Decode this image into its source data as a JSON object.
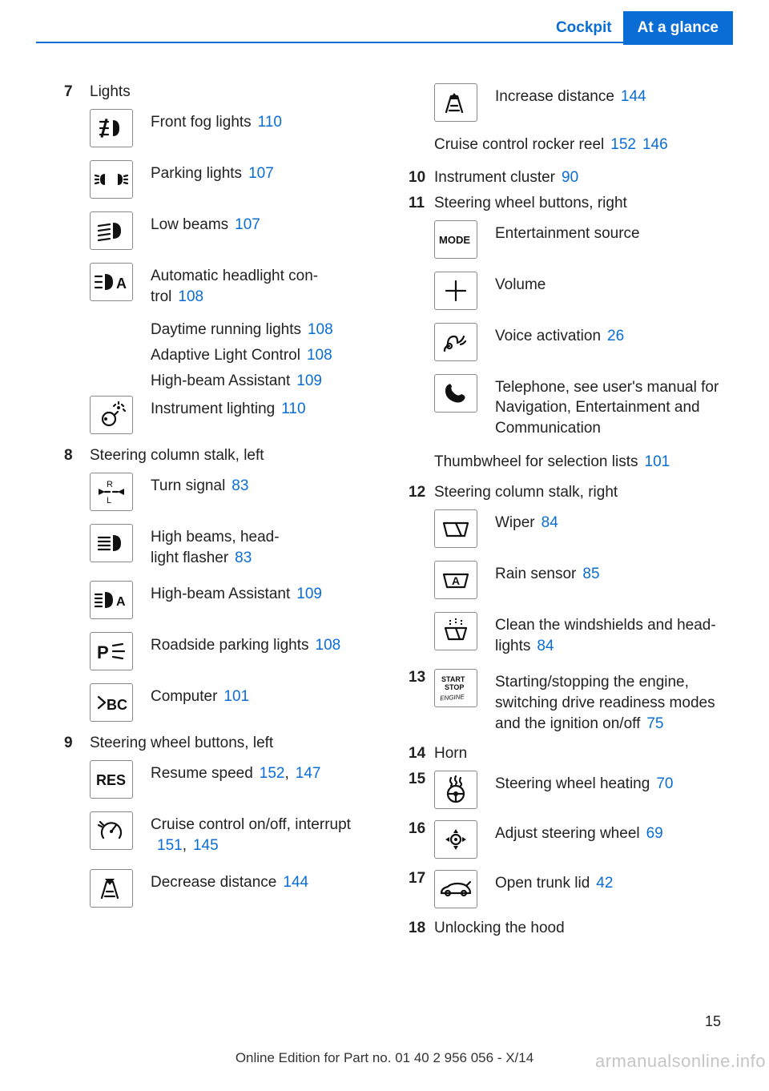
{
  "header": {
    "tab1": "Cockpit",
    "tab2": "At a glance"
  },
  "link_color": "#0a6dd6",
  "left_column": [
    {
      "num": "7",
      "title": "Lights",
      "items": [
        {
          "icon": "front-fog",
          "text": "Front fog lights",
          "refs": [
            "110"
          ]
        },
        {
          "icon": "parking-lights",
          "text": "Parking lights",
          "refs": [
            "107"
          ]
        },
        {
          "icon": "low-beams",
          "text": "Low beams",
          "refs": [
            "107"
          ]
        },
        {
          "icon": "auto-headlight",
          "text": "Automatic headlight con‐\ntrol",
          "refs": [
            "108"
          ]
        },
        {
          "icon": "",
          "text": "Daytime running lights",
          "refs": [
            "108"
          ],
          "noicon": true
        },
        {
          "icon": "",
          "text": "Adaptive Light Control",
          "refs": [
            "108"
          ],
          "noicon": true
        },
        {
          "icon": "",
          "text": "High-beam Assistant",
          "refs": [
            "109"
          ],
          "noicon": true
        },
        {
          "icon": "instrument-lighting",
          "text": "Instrument lighting",
          "refs": [
            "110"
          ]
        }
      ]
    },
    {
      "num": "8",
      "title": "Steering column stalk, left",
      "items": [
        {
          "icon": "turn-signal",
          "text": "Turn signal",
          "refs": [
            "83"
          ]
        },
        {
          "icon": "high-beams",
          "text": "High beams, head‐\nlight flasher",
          "refs": [
            "83"
          ]
        },
        {
          "icon": "hba",
          "text": "High-beam Assistant",
          "refs": [
            "109"
          ]
        },
        {
          "icon": "roadside-parking",
          "text": "Roadside parking lights",
          "refs": [
            "108"
          ]
        },
        {
          "icon": "computer",
          "text": "Computer",
          "refs": [
            "101"
          ]
        }
      ]
    },
    {
      "num": "9",
      "title": "Steering wheel buttons, left",
      "items": [
        {
          "icon": "res",
          "text": "Resume speed",
          "refs": [
            "152",
            "147"
          ],
          "comma": true
        },
        {
          "icon": "cruise-onoff",
          "text": "Cruise control on/off, interrupt",
          "refs": [
            "151",
            "145"
          ],
          "comma": true,
          "refs_newline": true
        },
        {
          "icon": "decrease-distance",
          "text": "Decrease distance",
          "refs": [
            "144"
          ]
        }
      ]
    }
  ],
  "right_column_pre": [
    {
      "icon": "increase-distance",
      "text": "Increase distance",
      "refs": [
        "144"
      ]
    }
  ],
  "right_column_pre_tail": {
    "text": "Cruise control rocker reel",
    "refs": [
      "152",
      "146"
    ]
  },
  "right_column": [
    {
      "num": "10",
      "title": "Instrument cluster",
      "title_refs": [
        "90"
      ]
    },
    {
      "num": "11",
      "title": "Steering wheel buttons, right",
      "items": [
        {
          "icon": "mode",
          "text": "Entertainment source"
        },
        {
          "icon": "volume",
          "text": "Volume"
        },
        {
          "icon": "voice",
          "text": "Voice activation",
          "refs": [
            "26"
          ]
        },
        {
          "icon": "phone",
          "text": "Telephone, see user's manual for Navigation, Entertainment and Communication"
        }
      ],
      "tail": {
        "text": "Thumbwheel for selection lists",
        "refs": [
          "101"
        ]
      }
    },
    {
      "num": "12",
      "title": "Steering column stalk, right",
      "items": [
        {
          "icon": "wiper",
          "text": "Wiper",
          "refs": [
            "84"
          ]
        },
        {
          "icon": "rain-sensor",
          "text": "Rain sensor",
          "refs": [
            "85"
          ]
        },
        {
          "icon": "clean-wind",
          "text": "Clean the windshields and head‐\nlights",
          "refs": [
            "84"
          ]
        }
      ]
    },
    {
      "num": "13",
      "inline_icon": "start-stop",
      "inline_text": "Starting/stopping the engine, switching drive readiness modes and the ignition on/off",
      "inline_refs": [
        "75"
      ]
    },
    {
      "num": "14",
      "title": "Horn"
    },
    {
      "num": "15",
      "inline_icon": "wheel-heat",
      "inline_text": "Steering wheel heating",
      "inline_refs": [
        "70"
      ]
    },
    {
      "num": "16",
      "inline_icon": "adjust-wheel",
      "inline_text": "Adjust steering wheel",
      "inline_refs": [
        "69"
      ]
    },
    {
      "num": "17",
      "inline_icon": "trunk",
      "inline_text": "Open trunk lid",
      "inline_refs": [
        "42"
      ]
    },
    {
      "num": "18",
      "title": "Unlocking the hood"
    }
  ],
  "page_number": "15",
  "footer_text": "Online Edition for Part no. 01 40 2 956 056 - X/14",
  "watermark": "armanualsonline.info"
}
